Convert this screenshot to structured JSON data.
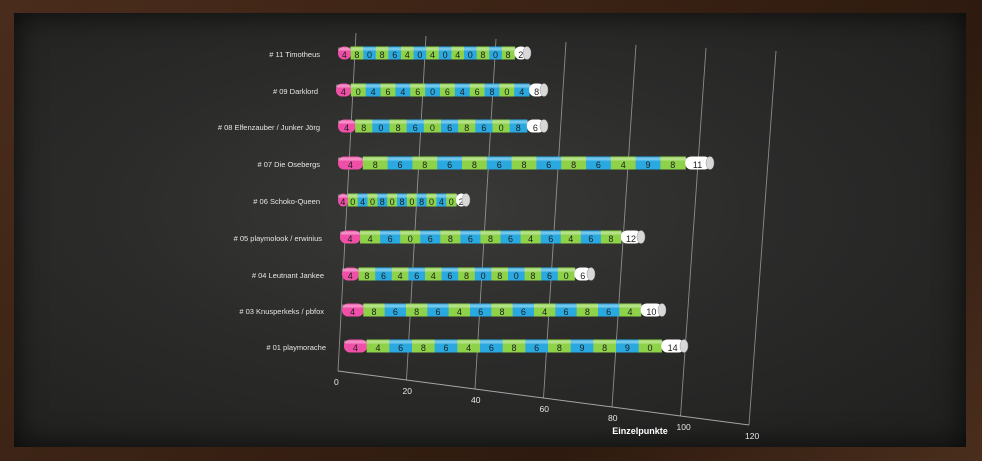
{
  "chart_data": {
    "type": "bar",
    "orientation": "horizontal-stacked",
    "xlabel": "Einzelpunkte",
    "xlim": [
      0,
      120
    ],
    "xticks": [
      "0",
      "20",
      "40",
      "60",
      "80",
      "100",
      "120"
    ],
    "grid": true,
    "colors": {
      "first": "#f04fa8",
      "alt_a": "#8ed24a",
      "alt_b": "#2aa9e0",
      "last": "#ffffff"
    },
    "rows": [
      {
        "name": "# 11 Timotheus",
        "segments": [
          "4",
          "8",
          "0",
          "8",
          "6",
          "4",
          "0",
          "4",
          "0",
          "4",
          "0",
          "8",
          "0",
          "8",
          "2"
        ]
      },
      {
        "name": "# 09 Darklord",
        "segments": [
          "4",
          "0",
          "4",
          "6",
          "4",
          "6",
          "0",
          "6",
          "4",
          "6",
          "8",
          "0",
          "4",
          "8"
        ]
      },
      {
        "name": "# 08 Elfenzauber / Junker Jörg",
        "segments": [
          "4",
          "8",
          "0",
          "8",
          "6",
          "0",
          "6",
          "8",
          "6",
          "0",
          "8",
          "6"
        ]
      },
      {
        "name": "# 07 Die Osebergs",
        "segments": [
          "4",
          "8",
          "6",
          "8",
          "6",
          "8",
          "6",
          "8",
          "6",
          "8",
          "6",
          "4",
          "9",
          "8",
          "11"
        ]
      },
      {
        "name": "# 06 Schoko-Queen",
        "segments": [
          "4",
          "0",
          "4",
          "0",
          "8",
          "0",
          "8",
          "0",
          "8",
          "0",
          "4",
          "0",
          "2"
        ]
      },
      {
        "name": "# 05 playmolook / erwinius",
        "segments": [
          "4",
          "4",
          "6",
          "0",
          "6",
          "8",
          "6",
          "8",
          "6",
          "4",
          "6",
          "4",
          "6",
          "8",
          "12"
        ]
      },
      {
        "name": "# 04 Leutnant Jankee",
        "segments": [
          "4",
          "8",
          "6",
          "4",
          "6",
          "4",
          "6",
          "8",
          "0",
          "8",
          "0",
          "8",
          "6",
          "0",
          "6"
        ]
      },
      {
        "name": "# 03 Knusperkeks / pbfox",
        "segments": [
          "4",
          "8",
          "6",
          "8",
          "6",
          "4",
          "6",
          "8",
          "6",
          "4",
          "6",
          "8",
          "6",
          "4",
          "10"
        ]
      },
      {
        "name": "# 01 playmorache",
        "segments": [
          "4",
          "4",
          "6",
          "8",
          "6",
          "4",
          "6",
          "8",
          "6",
          "8",
          "9",
          "8",
          "9",
          "0",
          "14"
        ]
      }
    ]
  }
}
